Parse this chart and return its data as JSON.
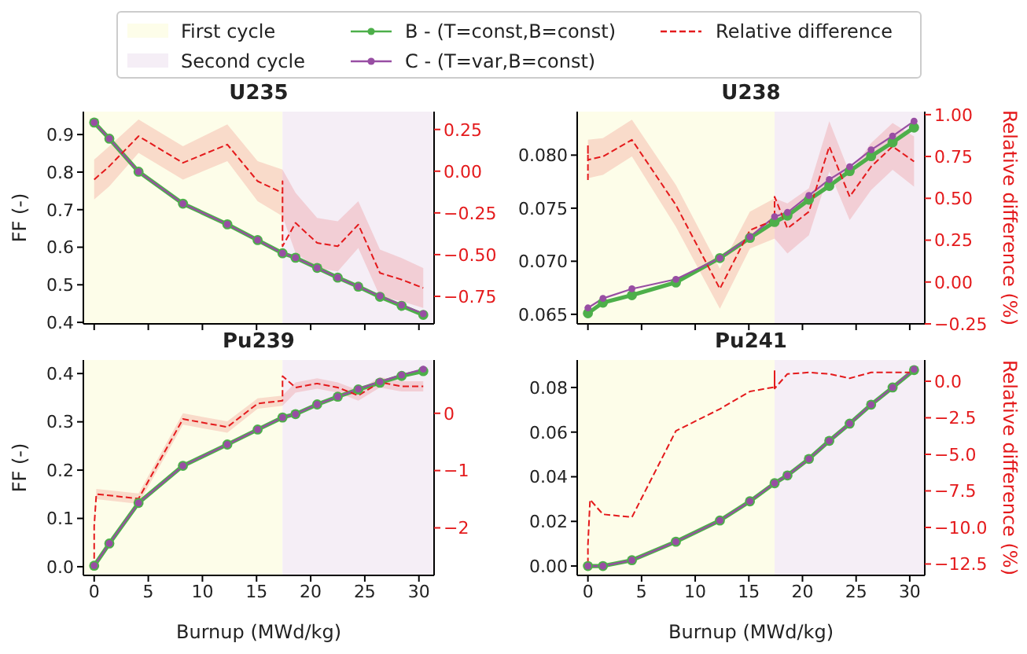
{
  "chart_data": [
    {
      "type": "line",
      "title": "U235",
      "ylabel": "FF (-)",
      "legend": "top",
      "tick_labels": "y",
      "xlim": [
        -1,
        31.4
      ],
      "xticks": [
        0,
        5,
        10,
        15,
        20,
        25,
        30
      ],
      "ylim": [
        0.396,
        0.961
      ],
      "yticks": [
        0.4,
        0.5,
        0.6,
        0.7,
        0.8,
        0.9
      ],
      "y2lim": [
        -0.915,
        0.357
      ],
      "y2ticks": [
        {
          "value": -0.75,
          "label": "−0.75"
        },
        {
          "value": -0.5,
          "label": "−0.50"
        },
        {
          "value": -0.25,
          "label": "−0.25"
        },
        {
          "value": 0,
          "label": "0.00"
        },
        0.25
      ],
      "bands": [
        {
          "axis": "x",
          "from": -1,
          "to": 17.4,
          "label": "First cycle",
          "color": "#fdfde9"
        },
        {
          "axis": "x",
          "from": 17.4,
          "to": 31.4,
          "label": "Second cycle",
          "color": "#f5eef6"
        }
      ],
      "x": [
        0,
        1.4,
        4.1,
        8.2,
        12.3,
        15.1,
        17.4,
        18.6,
        20.6,
        22.5,
        24.4,
        26.4,
        28.4,
        30.4
      ],
      "series": [
        {
          "name": "B - (T=const,B=const)",
          "color": "#4daf4a",
          "marker": "circle",
          "values": [
            0.932,
            0.889,
            0.801,
            0.716,
            0.661,
            0.619,
            0.584,
            0.572,
            0.545,
            0.519,
            0.495,
            0.468,
            0.444,
            0.42
          ]
        },
        {
          "name": "C - (T=var,B=const)",
          "color": "#984ea3",
          "marker": "circle",
          "values": [
            0.932,
            0.889,
            0.801,
            0.716,
            0.661,
            0.619,
            0.584,
            0.572,
            0.545,
            0.519,
            0.495,
            0.47,
            0.446,
            0.423
          ]
        },
        {
          "name": "Relative difference",
          "color": "#e41a1c",
          "axis": "y2",
          "marker": "none",
          "line_style": "dashed",
          "x": [
            0,
            1.4,
            4.1,
            8.2,
            12.3,
            15.1,
            17.4,
            17.4,
            17.4,
            18.6,
            20.6,
            22.5,
            24.4,
            26.4,
            28.4,
            30.4
          ],
          "values": [
            -0.05,
            0.03,
            0.21,
            0.05,
            0.16,
            -0.06,
            -0.13,
            -0.06,
            -0.45,
            -0.31,
            -0.43,
            -0.45,
            -0.32,
            -0.61,
            -0.65,
            -0.7
          ],
          "lower": [
            -0.17,
            -0.09,
            0.11,
            -0.05,
            0.06,
            -0.18,
            -0.27,
            -0.27,
            -0.27,
            -0.49,
            -0.58,
            -0.6,
            -0.46,
            -0.75,
            -0.78,
            -0.82
          ],
          "upper": [
            0.07,
            0.15,
            0.31,
            0.15,
            0.28,
            0.06,
            0.01,
            0.01,
            0.01,
            -0.13,
            -0.28,
            -0.3,
            -0.18,
            -0.47,
            -0.52,
            -0.58
          ]
        }
      ]
    },
    {
      "type": "line",
      "title": "U238",
      "y2label": "Relative difference (%)",
      "tick_labels": "y",
      "xlim": [
        -1,
        31.4
      ],
      "xticks": [
        0,
        5,
        10,
        15,
        20,
        25,
        30
      ],
      "ylim": [
        0.0641,
        0.0841
      ],
      "yticks": [
        {
          "value": 0.065,
          "label": "0.065"
        },
        {
          "value": 0.07,
          "label": "0.070"
        },
        {
          "value": 0.075,
          "label": "0.075"
        },
        {
          "value": 0.08,
          "label": "0.080"
        }
      ],
      "y2lim": [
        -0.25,
        1.018
      ],
      "y2ticks": [
        {
          "value": -0.25,
          "label": "−0.25"
        },
        {
          "value": 0,
          "label": "0.00"
        },
        0.25,
        {
          "value": 0.5,
          "label": "0.50"
        },
        0.75,
        {
          "value": 1,
          "label": "1.00"
        }
      ],
      "bands": [
        {
          "axis": "x",
          "from": -1,
          "to": 17.4,
          "color": "#fdfde9"
        },
        {
          "axis": "x",
          "from": 17.4,
          "to": 31.4,
          "color": "#f5eef6"
        }
      ],
      "x": [
        0,
        1.4,
        4.1,
        8.2,
        12.3,
        15.1,
        17.4,
        18.6,
        20.6,
        22.5,
        24.4,
        26.4,
        28.4,
        30.4
      ],
      "series": [
        {
          "color": "#4daf4a",
          "marker": "circle",
          "values": [
            0.0651,
            0.0661,
            0.0668,
            0.068,
            0.0703,
            0.0722,
            0.0737,
            0.0743,
            0.0758,
            0.0771,
            0.0785,
            0.0799,
            0.0812,
            0.0826
          ]
        },
        {
          "color": "#984ea3",
          "marker": "circle",
          "values": [
            0.0656,
            0.0665,
            0.0674,
            0.0683,
            0.0703,
            0.0723,
            0.0742,
            0.0746,
            0.0762,
            0.0777,
            0.0789,
            0.0805,
            0.0818,
            0.0832
          ]
        },
        {
          "color": "#e41a1c",
          "axis": "y2",
          "marker": "none",
          "line_style": "dashed",
          "x": [
            0,
            0,
            0,
            1.4,
            4.1,
            8.2,
            12.3,
            15.1,
            17.4,
            17.4,
            18.6,
            20.6,
            22.5,
            24.4,
            26.4,
            28.4,
            30.4
          ],
          "values": [
            0.61,
            0.82,
            0.73,
            0.75,
            0.85,
            0.46,
            -0.04,
            0.31,
            0.37,
            0.51,
            0.32,
            0.42,
            0.81,
            0.51,
            0.69,
            0.81,
            0.72
          ],
          "lower": [
            0.62,
            0.62,
            0.62,
            0.64,
            0.75,
            0.33,
            -0.16,
            0.2,
            0.26,
            0.26,
            0.17,
            0.28,
            0.66,
            0.37,
            0.55,
            0.67,
            0.57
          ],
          "upper": [
            0.85,
            0.85,
            0.85,
            0.86,
            0.97,
            0.58,
            0.08,
            0.42,
            0.5,
            0.5,
            0.47,
            0.56,
            0.96,
            0.65,
            0.83,
            0.95,
            0.87
          ]
        }
      ]
    },
    {
      "type": "line",
      "title": "Pu239",
      "ylabel": "FF (-)",
      "xlabel": "Burnup (MWd/kg)",
      "xlim": [
        -1,
        31.4
      ],
      "xticks": [
        0,
        5,
        10,
        15,
        20,
        25,
        30
      ],
      "ylim": [
        -0.018,
        0.428
      ],
      "yticks": [
        {
          "value": 0,
          "label": "0.0"
        },
        0.1,
        0.2,
        0.3,
        0.4
      ],
      "y2lim": [
        -2.83,
        0.93
      ],
      "y2ticks": [
        {
          "value": -2,
          "label": "−2"
        },
        {
          "value": -1,
          "label": "−1"
        },
        0
      ],
      "bands": [
        {
          "axis": "x",
          "from": -1,
          "to": 17.4,
          "color": "#fdfde9"
        },
        {
          "axis": "x",
          "from": 17.4,
          "to": 31.4,
          "color": "#f5eef6"
        }
      ],
      "x": [
        0,
        1.4,
        4.1,
        8.2,
        12.3,
        15.1,
        17.4,
        18.6,
        20.6,
        22.5,
        24.4,
        26.4,
        28.4,
        30.4
      ],
      "series": [
        {
          "color": "#4daf4a",
          "marker": "circle",
          "values": [
            0.002,
            0.048,
            0.132,
            0.209,
            0.253,
            0.284,
            0.309,
            0.316,
            0.336,
            0.352,
            0.367,
            0.381,
            0.395,
            0.405
          ]
        },
        {
          "color": "#984ea3",
          "marker": "circle",
          "values": [
            0.002,
            0.048,
            0.132,
            0.209,
            0.253,
            0.284,
            0.309,
            0.316,
            0.336,
            0.352,
            0.368,
            0.383,
            0.397,
            0.409
          ]
        },
        {
          "color": "#e41a1c",
          "axis": "y2",
          "marker": "none",
          "line_style": "dashed",
          "x": [
            0,
            0,
            0.2,
            4.1,
            8.2,
            12.3,
            15.1,
            17.4,
            17.4,
            18.6,
            20.6,
            22.5,
            24.4,
            26.4,
            28.4,
            30.4
          ],
          "values": [
            -2.54,
            -1.97,
            -1.41,
            -1.49,
            -0.1,
            -0.24,
            0.17,
            0.22,
            0.65,
            0.45,
            0.52,
            0.45,
            0.31,
            0.54,
            0.47,
            0.47
          ],
          "lower": [
            -2.6,
            -2.05,
            -1.5,
            -1.58,
            -0.2,
            -0.34,
            0.08,
            0.13,
            0.13,
            0.36,
            0.43,
            0.36,
            0.22,
            0.45,
            0.38,
            0.38
          ],
          "upper": [
            -2.48,
            -1.89,
            -1.32,
            -1.4,
            0,
            -0.14,
            0.26,
            0.31,
            0.31,
            0.54,
            0.61,
            0.54,
            0.4,
            0.63,
            0.56,
            0.56
          ]
        }
      ]
    },
    {
      "type": "line",
      "title": "Pu241",
      "xlabel": "Burnup (MWd/kg)",
      "y2label": "Relative difference (%)",
      "xlim": [
        -1,
        31.4
      ],
      "xticks": [
        0,
        5,
        10,
        15,
        20,
        25,
        30
      ],
      "ylim": [
        -0.0042,
        0.0923
      ],
      "yticks": [
        {
          "value": 0,
          "label": "0.00"
        },
        {
          "value": 0.02,
          "label": "0.02"
        },
        {
          "value": 0.04,
          "label": "0.04"
        },
        {
          "value": 0.06,
          "label": "0.06"
        },
        {
          "value": 0.08,
          "label": "0.08"
        }
      ],
      "y2lim": [
        -13.28,
        1.45
      ],
      "y2ticks": [
        {
          "value": -12.5,
          "label": "−12.5"
        },
        {
          "value": -10,
          "label": "−10.0"
        },
        {
          "value": -7.5,
          "label": "−7.5"
        },
        {
          "value": -5,
          "label": "−5.0"
        },
        {
          "value": -2.5,
          "label": "−2.5"
        },
        {
          "value": 0,
          "label": "0.0"
        }
      ],
      "bands": [
        {
          "axis": "x",
          "from": -1,
          "to": 17.4,
          "color": "#fdfde9"
        },
        {
          "axis": "x",
          "from": 17.4,
          "to": 31.4,
          "color": "#f5eef6"
        }
      ],
      "x": [
        0,
        1.4,
        4.1,
        8.2,
        12.3,
        15.1,
        17.4,
        18.6,
        20.6,
        22.5,
        24.4,
        26.4,
        28.4,
        30.4
      ],
      "series": [
        {
          "color": "#4daf4a",
          "marker": "circle",
          "values": [
            0,
            0,
            0.0026,
            0.0109,
            0.0204,
            0.029,
            0.0371,
            0.0406,
            0.048,
            0.0561,
            0.0638,
            0.0723,
            0.08,
            0.0878
          ]
        },
        {
          "color": "#984ea3",
          "marker": "circle",
          "values": [
            0,
            0,
            0.0026,
            0.0109,
            0.0204,
            0.029,
            0.0371,
            0.0406,
            0.048,
            0.0561,
            0.0638,
            0.0723,
            0.08,
            0.0881
          ]
        },
        {
          "color": "#e41a1c",
          "axis": "y2",
          "marker": "none",
          "line_style": "dashed",
          "x": [
            0,
            0,
            0.2,
            1.4,
            4.1,
            8.2,
            12.3,
            15.1,
            17.4,
            17.4,
            17.4,
            18.6,
            20.6,
            22.5,
            24.4,
            26.4,
            28.4,
            30.4
          ],
          "values": [
            -12.5,
            -11.2,
            -8.1,
            -9.1,
            -9.3,
            -3.4,
            -1.9,
            -0.7,
            -0.4,
            0.7,
            -0.5,
            0.5,
            0.6,
            0.5,
            0.2,
            0.6,
            0.6,
            0.6
          ]
        }
      ]
    }
  ]
}
